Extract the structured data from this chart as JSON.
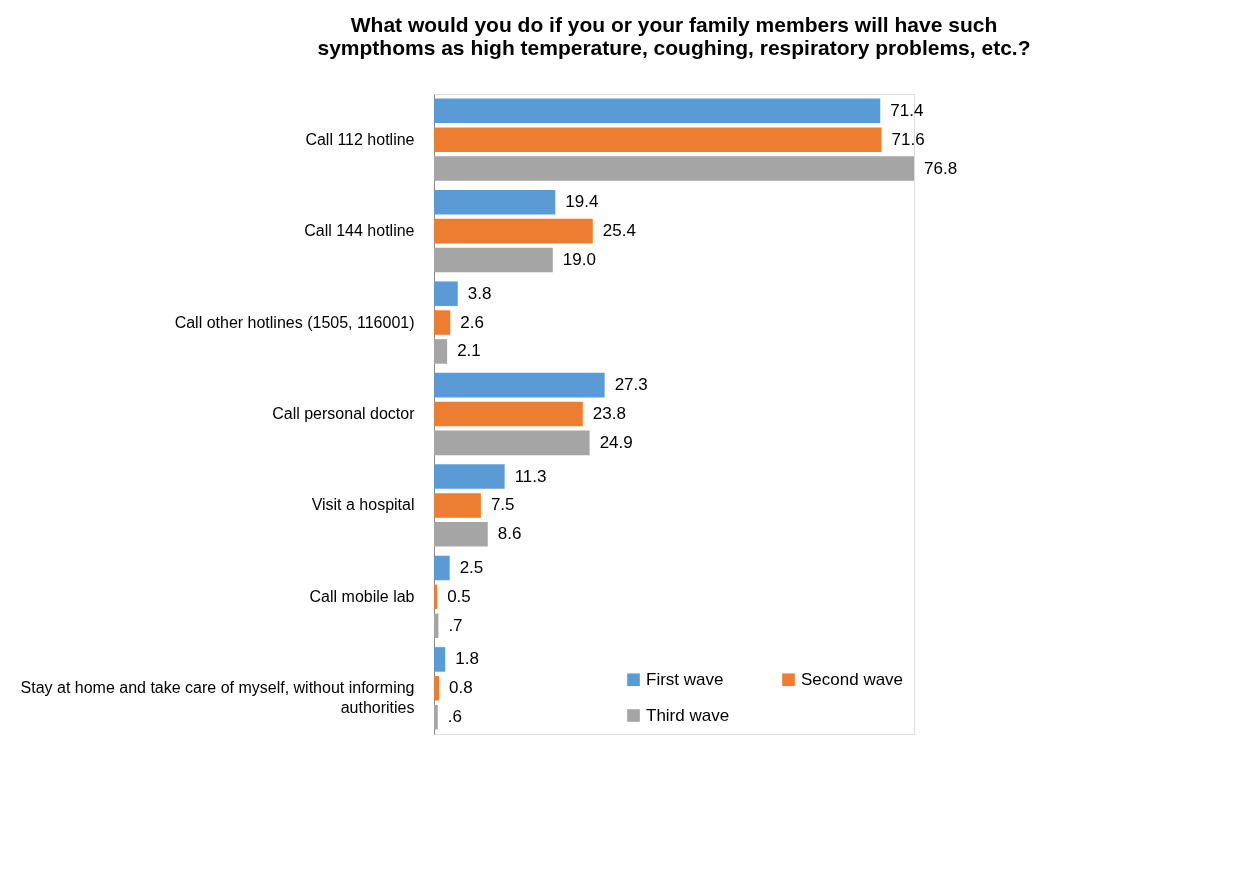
{
  "chart_data": {
    "type": "bar",
    "orientation": "horizontal",
    "title": [
      "What would you do if you or your family members will have such",
      "sympthoms as high temperature, coughing, respiratory problems, etc.?"
    ],
    "categories": [
      "Call 112 hotline",
      "Call 144 hotline",
      "Call other hotlines (1505, 116001)",
      "Call personal doctor",
      "Visit a hospital",
      "Call mobile lab",
      "Stay at home and take care of myself, without informing authorities"
    ],
    "series": [
      {
        "name": "First wave",
        "color": "#5b9bd5",
        "values": [
          71.4,
          19.4,
          3.8,
          27.3,
          11.3,
          2.5,
          1.8
        ],
        "value_labels": [
          "71.4",
          "19.4",
          "3.8",
          "27.3",
          "11.3",
          "2.5",
          "1.8"
        ]
      },
      {
        "name": "Second wave",
        "color": "#ed7d31",
        "values": [
          71.6,
          25.4,
          2.6,
          23.8,
          7.5,
          0.5,
          0.8
        ],
        "value_labels": [
          "71.6",
          "25.4",
          "2.6",
          "23.8",
          "7.5",
          "0.5",
          "0.8"
        ]
      },
      {
        "name": "Third wave",
        "color": "#a5a5a5",
        "values": [
          76.8,
          19.0,
          2.1,
          24.9,
          8.6,
          0.7,
          0.6
        ],
        "value_labels": [
          "76.8",
          "19.0",
          "2.1",
          "24.9",
          "8.6",
          ".7",
          ".6"
        ]
      }
    ],
    "legend": "bottom right"
  }
}
